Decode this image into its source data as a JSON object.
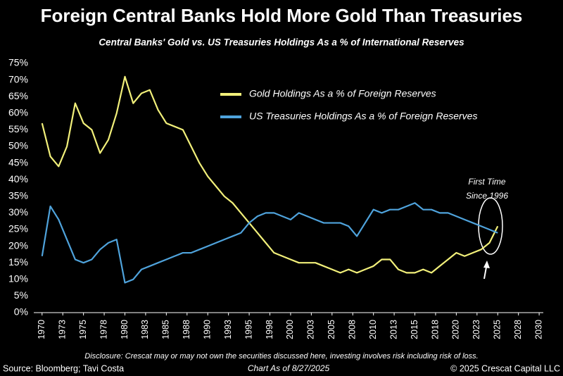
{
  "chart_data": {
    "type": "line",
    "title": "Foreign Central Banks Hold More Gold Than Treasuries",
    "subtitle": "Central Banks' Gold vs. US Treasuries Holdings As a % of International Reserves",
    "x": [
      1970,
      1971,
      1972,
      1973,
      1974,
      1975,
      1976,
      1977,
      1978,
      1979,
      1980,
      1981,
      1982,
      1983,
      1984,
      1985,
      1986,
      1987,
      1988,
      1989,
      1990,
      1991,
      1992,
      1993,
      1994,
      1995,
      1996,
      1997,
      1998,
      1999,
      2000,
      2001,
      2002,
      2003,
      2004,
      2005,
      2006,
      2007,
      2008,
      2009,
      2010,
      2011,
      2012,
      2013,
      2014,
      2015,
      2016,
      2017,
      2018,
      2019,
      2020,
      2021,
      2022,
      2023,
      2024,
      2025
    ],
    "series": [
      {
        "name": "Gold Holdings As a % of Foreign Reserves",
        "color": "#f2f07a",
        "values": [
          57,
          47,
          44,
          50,
          63,
          57,
          55,
          48,
          52,
          60,
          71,
          63,
          66,
          67,
          61,
          57,
          56,
          55,
          50,
          45,
          41,
          38,
          35,
          33,
          30,
          27,
          24,
          21,
          18,
          17,
          16,
          15,
          15,
          15,
          14,
          13,
          12,
          13,
          12,
          13,
          14,
          16,
          16,
          13,
          12,
          12,
          13,
          12,
          14,
          16,
          18,
          17,
          18,
          19,
          21,
          26
        ]
      },
      {
        "name": "US Treasuries Holdings As a % of Foreign Reserves",
        "color": "#4fa3dc",
        "values": [
          17,
          32,
          28,
          22,
          16,
          15,
          16,
          19,
          21,
          22,
          9,
          10,
          13,
          14,
          15,
          16,
          17,
          18,
          18,
          19,
          20,
          21,
          22,
          23,
          24,
          27,
          29,
          30,
          30,
          29,
          28,
          30,
          29,
          28,
          27,
          27,
          27,
          26,
          23,
          27,
          31,
          30,
          31,
          31,
          32,
          33,
          31,
          31,
          30,
          30,
          29,
          28,
          27,
          26,
          25,
          24
        ]
      }
    ],
    "xlim": [
      1969,
      2030.5
    ],
    "xticks": [
      1970,
      {
        "value": 1972.5,
        "label": "1973"
      },
      1975,
      {
        "value": 1977.5,
        "label": "1978"
      },
      1980,
      {
        "value": 1982.5,
        "label": "1983"
      },
      1985,
      {
        "value": 1987.5,
        "label": "1988"
      },
      1990,
      {
        "value": 1992.5,
        "label": "1993"
      },
      1995,
      {
        "value": 1997.5,
        "label": "1998"
      },
      2000,
      {
        "value": 2002.5,
        "label": "2003"
      },
      2005,
      {
        "value": 2007.5,
        "label": "2008"
      },
      2010,
      {
        "value": 2012.5,
        "label": "2013"
      },
      2015,
      {
        "value": 2017.5,
        "label": "2018"
      },
      2020,
      {
        "value": 2022.5,
        "label": "2023"
      },
      2025,
      {
        "value": 2027.5,
        "label": "2028"
      },
      2030
    ],
    "ylim": [
      0,
      75
    ],
    "yticks": [
      {
        "value": 0,
        "label": "0%"
      },
      {
        "value": 5,
        "label": "5%"
      },
      {
        "value": 10,
        "label": "10%"
      },
      {
        "value": 15,
        "label": "15%"
      },
      {
        "value": 20,
        "label": "20%"
      },
      {
        "value": 25,
        "label": "25%"
      },
      {
        "value": 30,
        "label": "30%"
      },
      {
        "value": 35,
        "label": "35%"
      },
      {
        "value": 40,
        "label": "40%"
      },
      {
        "value": 45,
        "label": "45%"
      },
      {
        "value": 50,
        "label": "50%"
      },
      {
        "value": 55,
        "label": "55%"
      },
      {
        "value": 60,
        "label": "60%"
      },
      {
        "value": 65,
        "label": "65%"
      },
      {
        "value": 70,
        "label": "70%"
      },
      {
        "value": 75,
        "label": "75%"
      }
    ],
    "annotation": [
      "First Time",
      "Since 1996"
    ],
    "disclosure": "Disclosure: Crescat may or may not own the securities discussed here, investing involves risk including risk of loss.",
    "source": "Source: Bloomberg; Tavi Costa",
    "date_note": "Chart As of 8/27/2025",
    "copyright": "© 2025 Crescat Capital LLC"
  }
}
